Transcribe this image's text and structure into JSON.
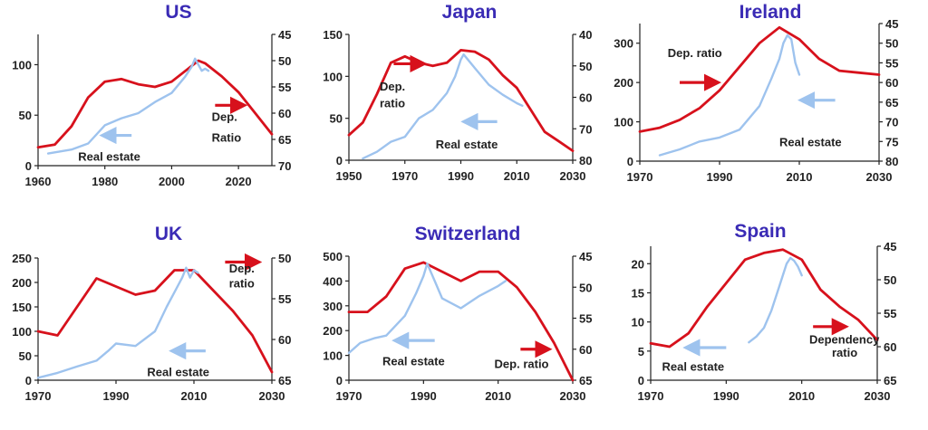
{
  "colors": {
    "dependency_ratio": "#d7111c",
    "real_estate": "#9ec3ee",
    "title": "#3a2bb5"
  },
  "chart_data": [
    {
      "type": "line",
      "title": "US",
      "xlim": [
        1960,
        2030
      ],
      "xticks": [
        1960,
        1980,
        2000,
        2020
      ],
      "ylim_left": [
        0,
        130
      ],
      "yticks_left": [
        0,
        50,
        100
      ],
      "ylim_right": [
        45,
        70
      ],
      "yticks_right": [
        45,
        50,
        55,
        60,
        65,
        70
      ],
      "right_inverted": true,
      "series": [
        {
          "key": "dependency_ratio",
          "axis": "right",
          "x": [
            1960,
            1965,
            1970,
            1975,
            1980,
            1985,
            1990,
            1995,
            2000,
            2005,
            2008,
            2010,
            2015,
            2020,
            2025,
            2030
          ],
          "values": [
            66.5,
            66,
            62.5,
            57,
            54,
            53.5,
            54.5,
            55,
            54,
            51.5,
            50,
            50.5,
            53,
            56,
            60,
            64
          ]
        },
        {
          "key": "real_estate",
          "axis": "left",
          "x": [
            1963,
            1970,
            1975,
            1980,
            1985,
            1990,
            1995,
            2000,
            2004,
            2006,
            2007,
            2008,
            2009,
            2010,
            2011
          ],
          "values": [
            12,
            16,
            22,
            40,
            47,
            52,
            63,
            72,
            88,
            98,
            106,
            100,
            94,
            96,
            94
          ]
        }
      ],
      "annotations": [
        {
          "text": "Real estate",
          "x": 1972,
          "y": 5,
          "anchor": "start"
        },
        {
          "text": "Dep.",
          "x": 2012,
          "y": 61.5,
          "anchor": "start",
          "axis": "right"
        },
        {
          "text": "Ratio",
          "x": 2012,
          "y": 65.4,
          "anchor": "start",
          "axis": "right"
        }
      ],
      "arrows": [
        {
          "type": "real_estate",
          "from": [
            1988,
            30
          ],
          "to": [
            1980,
            30
          ]
        },
        {
          "type": "dependency_ratio",
          "from": [
            2013,
            58.5
          ],
          "to": [
            2021,
            58.5
          ],
          "axis": "right"
        }
      ]
    },
    {
      "type": "line",
      "title": "Japan",
      "xlim": [
        1950,
        2030
      ],
      "xticks": [
        1950,
        1970,
        1990,
        2010,
        2030
      ],
      "ylim_left": [
        0,
        150
      ],
      "yticks_left": [
        0,
        50,
        100,
        150
      ],
      "ylim_right": [
        40,
        80
      ],
      "yticks_right": [
        40,
        50,
        60,
        70,
        80
      ],
      "right_inverted": true,
      "series": [
        {
          "key": "dependency_ratio",
          "axis": "right",
          "x": [
            1950,
            1955,
            1960,
            1965,
            1970,
            1975,
            1980,
            1985,
            1990,
            1995,
            2000,
            2005,
            2010,
            2015,
            2020,
            2025,
            2030
          ],
          "values": [
            72,
            68,
            59,
            49,
            47,
            49,
            50,
            49,
            45,
            45.5,
            48,
            53,
            57,
            64,
            71,
            74,
            77
          ]
        },
        {
          "key": "real_estate",
          "axis": "left",
          "x": [
            1955,
            1960,
            1965,
            1970,
            1975,
            1980,
            1985,
            1988,
            1990,
            1991,
            1993,
            1995,
            2000,
            2005,
            2010,
            2012
          ],
          "values": [
            2,
            10,
            22,
            28,
            50,
            60,
            80,
            100,
            120,
            126,
            118,
            110,
            90,
            78,
            68,
            65
          ]
        }
      ],
      "annotations": [
        {
          "text": "Dep.",
          "x": 1961,
          "y": 83,
          "anchor": "start"
        },
        {
          "text": "ratio",
          "x": 1961,
          "y": 63,
          "anchor": "start"
        },
        {
          "text": "Real estate",
          "x": 1981,
          "y": 14,
          "anchor": "start"
        }
      ],
      "arrows": [
        {
          "type": "dependency_ratio",
          "from": [
            1966,
            115
          ],
          "to": [
            1976,
            115
          ]
        },
        {
          "type": "real_estate",
          "from": [
            2003,
            46
          ],
          "to": [
            1992,
            46
          ]
        }
      ]
    },
    {
      "type": "line",
      "title": "Ireland",
      "xlim": [
        1970,
        2030
      ],
      "xticks": [
        1970,
        1990,
        2010,
        2030
      ],
      "ylim_left": [
        0,
        350
      ],
      "yticks_left": [
        0,
        100,
        200,
        300
      ],
      "ylim_right": [
        45,
        80
      ],
      "yticks_right": [
        45,
        50,
        55,
        60,
        65,
        70,
        75,
        80
      ],
      "right_inverted": true,
      "series": [
        {
          "key": "dependency_ratio",
          "axis": "right",
          "x": [
            1970,
            1975,
            1980,
            1985,
            1990,
            1995,
            2000,
            2005,
            2010,
            2015,
            2020,
            2025,
            2030
          ],
          "values": [
            72.5,
            71.5,
            69.5,
            66.5,
            62,
            56,
            50,
            46,
            49,
            54,
            57,
            57.5,
            58
          ]
        },
        {
          "key": "real_estate",
          "axis": "left",
          "x": [
            1975,
            1980,
            1985,
            1990,
            1995,
            2000,
            2003,
            2005,
            2006,
            2007,
            2008,
            2009,
            2010
          ],
          "values": [
            15,
            30,
            50,
            60,
            80,
            140,
            210,
            260,
            300,
            320,
            310,
            250,
            220
          ]
        }
      ],
      "annotations": [
        {
          "text": "Dep. ratio",
          "x": 1977,
          "y": 265,
          "anchor": "start"
        },
        {
          "text": "Real estate",
          "x": 2005,
          "y": 38,
          "anchor": "start"
        }
      ],
      "arrows": [
        {
          "type": "dependency_ratio",
          "from": [
            1980,
            200
          ],
          "to": [
            1989,
            200
          ]
        },
        {
          "type": "real_estate",
          "from": [
            2019,
            155
          ],
          "to": [
            2011,
            155
          ]
        }
      ]
    },
    {
      "type": "line",
      "title": "UK",
      "xlim": [
        1970,
        2030
      ],
      "xticks": [
        1970,
        1990,
        2010,
        2030
      ],
      "ylim_left": [
        0,
        250
      ],
      "yticks_left": [
        0,
        50,
        100,
        150,
        200,
        250
      ],
      "ylim_right": [
        50,
        65
      ],
      "yticks_right": [
        50,
        55,
        60,
        65
      ],
      "right_inverted": true,
      "series": [
        {
          "key": "dependency_ratio",
          "axis": "right",
          "x": [
            1970,
            1975,
            1980,
            1985,
            1990,
            1995,
            2000,
            2005,
            2010,
            2015,
            2020,
            2025,
            2030
          ],
          "values": [
            59,
            59.5,
            56,
            52.5,
            53.5,
            54.5,
            54,
            51.5,
            51.5,
            54,
            56.5,
            59.5,
            64
          ]
        },
        {
          "key": "real_estate",
          "axis": "left",
          "x": [
            1970,
            1975,
            1980,
            1985,
            1988,
            1990,
            1995,
            2000,
            2003,
            2005,
            2007,
            2008,
            2009,
            2010,
            2011
          ],
          "values": [
            5,
            15,
            28,
            40,
            60,
            75,
            70,
            100,
            150,
            180,
            210,
            230,
            210,
            225,
            220
          ]
        }
      ],
      "annotations": [
        {
          "text": "Dep.",
          "x": 2019,
          "y": 51.8,
          "anchor": "start",
          "axis": "right"
        },
        {
          "text": "ratio",
          "x": 2019,
          "y": 53.6,
          "anchor": "start",
          "axis": "right"
        },
        {
          "text": "Real estate",
          "x": 1998,
          "y": 8,
          "anchor": "start"
        }
      ],
      "arrows": [
        {
          "type": "dependency_ratio",
          "from": [
            2018,
            50.5
          ],
          "to": [
            2026,
            50.5
          ],
          "axis": "right"
        },
        {
          "type": "real_estate",
          "from": [
            2013,
            60
          ],
          "to": [
            2005,
            60
          ]
        }
      ]
    },
    {
      "type": "line",
      "title": "Switzerland",
      "xlim": [
        1970,
        2030
      ],
      "xticks": [
        1970,
        1990,
        2010,
        2030
      ],
      "ylim_left": [
        0,
        500
      ],
      "yticks_left": [
        0,
        100,
        200,
        300,
        400,
        500
      ],
      "ylim_right": [
        45,
        65
      ],
      "yticks_right": [
        45,
        50,
        55,
        60,
        65
      ],
      "right_inverted": true,
      "series": [
        {
          "key": "dependency_ratio",
          "axis": "right",
          "x": [
            1970,
            1975,
            1980,
            1985,
            1990,
            1995,
            2000,
            2005,
            2010,
            2015,
            2020,
            2025,
            2030
          ],
          "values": [
            54,
            54,
            51.5,
            47,
            46,
            47.5,
            49,
            47.5,
            47.5,
            50,
            54,
            59,
            65
          ]
        },
        {
          "key": "real_estate",
          "axis": "left",
          "x": [
            1970,
            1973,
            1977,
            1980,
            1985,
            1988,
            1990,
            1991,
            1993,
            1995,
            2000,
            2005,
            2010,
            2012
          ],
          "values": [
            110,
            150,
            170,
            180,
            260,
            350,
            420,
            470,
            400,
            330,
            290,
            340,
            380,
            400
          ]
        }
      ],
      "annotations": [
        {
          "text": "Real estate",
          "x": 1979,
          "y": 60,
          "anchor": "start"
        },
        {
          "text": "Dep. ratio",
          "x": 2009,
          "y": 63,
          "anchor": "start",
          "axis": "right"
        }
      ],
      "arrows": [
        {
          "type": "real_estate",
          "from": [
            1993,
            160
          ],
          "to": [
            1983,
            160
          ]
        },
        {
          "type": "dependency_ratio",
          "from": [
            2016,
            60
          ],
          "to": [
            2023,
            60
          ],
          "axis": "right"
        }
      ]
    },
    {
      "type": "line",
      "title": "Spain",
      "xlim": [
        1970,
        2030
      ],
      "xticks": [
        1970,
        1990,
        2010,
        2030
      ],
      "ylim_left": [
        0,
        23
      ],
      "yticks_left": [
        0,
        5,
        10,
        15,
        20
      ],
      "ylim_right": [
        45,
        65
      ],
      "yticks_right": [
        45,
        50,
        55,
        60,
        65
      ],
      "right_inverted": true,
      "series": [
        {
          "key": "dependency_ratio",
          "axis": "right",
          "x": [
            1970,
            1975,
            1980,
            1985,
            1990,
            1995,
            2000,
            2005,
            2010,
            2015,
            2020,
            2025,
            2030
          ],
          "values": [
            59.5,
            60,
            58,
            54,
            50.5,
            47,
            46,
            45.5,
            47,
            51.5,
            54,
            56,
            59
          ]
        },
        {
          "key": "real_estate",
          "axis": "left",
          "x": [
            1996,
            1998,
            2000,
            2002,
            2004,
            2006,
            2007,
            2008,
            2009,
            2010
          ],
          "values": [
            6.5,
            7.5,
            9,
            12,
            16,
            20,
            21,
            20.5,
            19.5,
            18
          ]
        }
      ],
      "annotations": [
        {
          "text": "Real estate",
          "x": 1973,
          "y": 1.6,
          "anchor": "start"
        },
        {
          "text": "Dependency",
          "x": 2012,
          "y": 59.5,
          "anchor": "start",
          "axis": "right"
        },
        {
          "text": "ratio",
          "x": 2018,
          "y": 61.5,
          "anchor": "start",
          "axis": "right"
        }
      ],
      "arrows": [
        {
          "type": "real_estate",
          "from": [
            1990,
            5.6
          ],
          "to": [
            1980,
            5.6
          ]
        },
        {
          "type": "dependency_ratio",
          "from": [
            2013,
            57
          ],
          "to": [
            2021,
            57
          ],
          "axis": "right"
        }
      ]
    }
  ]
}
